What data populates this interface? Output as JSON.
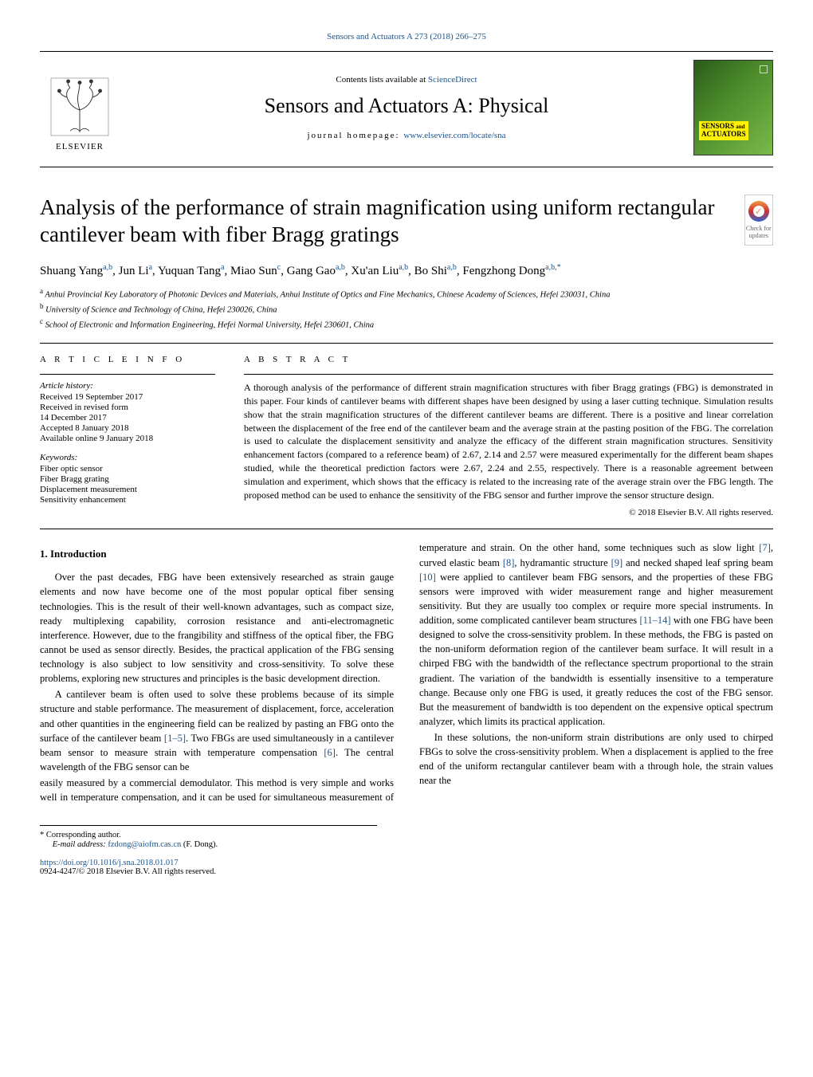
{
  "topRef": "Sensors and Actuators A 273 (2018) 266–275",
  "header": {
    "contentsPrefix": "Contents lists available at ",
    "scienceDirect": "ScienceDirect",
    "journalTitle": "Sensors and Actuators A: Physical",
    "homepagePrefix": "journal homepage: ",
    "homepageUrl": "www.elsevier.com/locate/sna",
    "publisherName": "ELSEVIER",
    "coverBadgeLine1": "SENSORS",
    "coverBadgeLine2": "and",
    "coverBadgeLine3": "ACTUATORS",
    "coverBadgeA": "A"
  },
  "crossmark": {
    "line1": "Check for",
    "line2": "updates"
  },
  "article": {
    "title": "Analysis of the performance of strain magnification using uniform rectangular cantilever beam with fiber Bragg gratings",
    "authorsHtmlParts": [
      {
        "name": "Shuang Yang",
        "aff": "a,b"
      },
      {
        "name": "Jun Li",
        "aff": "a"
      },
      {
        "name": "Yuquan Tang",
        "aff": "a"
      },
      {
        "name": "Miao Sun",
        "aff": "c"
      },
      {
        "name": "Gang Gao",
        "aff": "a,b"
      },
      {
        "name": "Xu'an Liu",
        "aff": "a,b"
      },
      {
        "name": "Bo Shi",
        "aff": "a,b"
      },
      {
        "name": "Fengzhong Dong",
        "aff": "a,b,*"
      }
    ],
    "affiliations": [
      {
        "marker": "a",
        "text": "Anhui Provincial Key Laboratory of Photonic Devices and Materials, Anhui Institute of Optics and Fine Mechanics, Chinese Academy of Sciences, Hefei 230031, China"
      },
      {
        "marker": "b",
        "text": "University of Science and Technology of China, Hefei 230026, China"
      },
      {
        "marker": "c",
        "text": "School of Electronic and Information Engineering, Hefei Normal University, Hefei 230601, China"
      }
    ]
  },
  "info": {
    "heading": "A R T I C L E   I N F O",
    "historyLabel": "Article history:",
    "history": [
      "Received 19 September 2017",
      "Received in revised form",
      "14 December 2017",
      "Accepted 8 January 2018",
      "Available online 9 January 2018"
    ],
    "keywordsLabel": "Keywords:",
    "keywords": [
      "Fiber optic sensor",
      "Fiber Bragg grating",
      "Displacement measurement",
      "Sensitivity enhancement"
    ]
  },
  "abstract": {
    "heading": "A B S T R A C T",
    "text": "A thorough analysis of the performance of different strain magnification structures with fiber Bragg gratings (FBG) is demonstrated in this paper. Four kinds of cantilever beams with different shapes have been designed by using a laser cutting technique. Simulation results show that the strain magnification structures of the different cantilever beams are different. There is a positive and linear correlation between the displacement of the free end of the cantilever beam and the average strain at the pasting position of the FBG. The correlation is used to calculate the displacement sensitivity and analyze the efficacy of the different strain magnification structures. Sensitivity enhancement factors (compared to a reference beam) of 2.67, 2.14 and 2.57 were measured experimentally for the different beam shapes studied, while the theoretical prediction factors were 2.67, 2.24 and 2.55, respectively. There is a reasonable agreement between simulation and experiment, which shows that the efficacy is related to the increasing rate of the average strain over the FBG length. The proposed method can be used to enhance the sensitivity of the FBG sensor and further improve the sensor structure design.",
    "copyright": "© 2018 Elsevier B.V. All rights reserved."
  },
  "body": {
    "section1Heading": "1.  Introduction",
    "p1a": "Over the past decades, FBG have been extensively researched as strain gauge elements and now have become one of the most popular optical fiber sensing technologies. This is the result of their well-known advantages, such as compact size, ready multiplexing capability, corrosion resistance and anti-electromagnetic interference. However, due to the frangibility and stiffness of the optical fiber, the FBG cannot be used as sensor directly. Besides, the practical application of the FBG sensing technology is also subject to low sensitivity and cross-sensitivity. To solve these problems, exploring new structures and principles is the basic development direction.",
    "p2a": "A cantilever beam is often used to solve these problems because of its simple structure and stable performance. The measurement of displacement, force, acceleration and other quantities in the engineering field can be realized by pasting an FBG onto the surface of the cantilever beam ",
    "p2b": ". Two FBGs are used simultaneously in a cantilever beam sensor to measure strain with temperature compensation ",
    "p2c": ". The central wavelength of the FBG sensor can be ",
    "p3a": "easily measured by a commercial demodulator. This method is very simple and works well in temperature compensation, and it can be used for simultaneous measurement of temperature and strain. On the other hand, some techniques such as slow light ",
    "p3b": ", curved elastic beam ",
    "p3c": ", hydramantic structure ",
    "p3d": " and necked shaped leaf spring beam ",
    "p3e": " were applied to cantilever beam FBG sensors, and the properties of these FBG sensors were improved with wider measurement range and higher measurement sensitivity. But they are usually too complex or require more special instruments. In addition, some complicated cantilever beam structures ",
    "p3f": " with one FBG have been designed to solve the cross-sensitivity problem. In these methods, the FBG is pasted on the non-uniform deformation region of the cantilever beam surface. It will result in a chirped FBG with the bandwidth of the reflectance spectrum proportional to the strain gradient. The variation of the bandwidth is essentially insensitive to a temperature change. Because only one FBG is used, it greatly reduces the cost of the FBG sensor. But the measurement of bandwidth is too dependent on the expensive optical spectrum analyzer, which limits its practical application.",
    "p4": "In these solutions, the non-uniform strain distributions are only used to chirped FBGs to solve the cross-sensitivity problem. When a displacement is applied to the free end of the uniform rectangular cantilever beam with a through hole, the strain values near the",
    "refs": {
      "r1_5": "[1–5]",
      "r6": "[6]",
      "r7": "[7]",
      "r8": "[8]",
      "r9": "[9]",
      "r10": "[10]",
      "r11_14": "[11–14]"
    }
  },
  "footnotes": {
    "corresponding": "* Corresponding author.",
    "emailLabel": "E-mail address: ",
    "email": "fzdong@aiofm.cas.cn",
    "emailSuffix": " (F. Dong).",
    "doi": "https://doi.org/10.1016/j.sna.2018.01.017",
    "issn": "0924-4247/© 2018 Elsevier B.V. All rights reserved."
  },
  "colors": {
    "link": "#1a5490",
    "text": "#000000",
    "coverGradStart": "#2a5a1a",
    "coverGradEnd": "#7aba4a",
    "coverBadgeBg": "#fff200"
  }
}
